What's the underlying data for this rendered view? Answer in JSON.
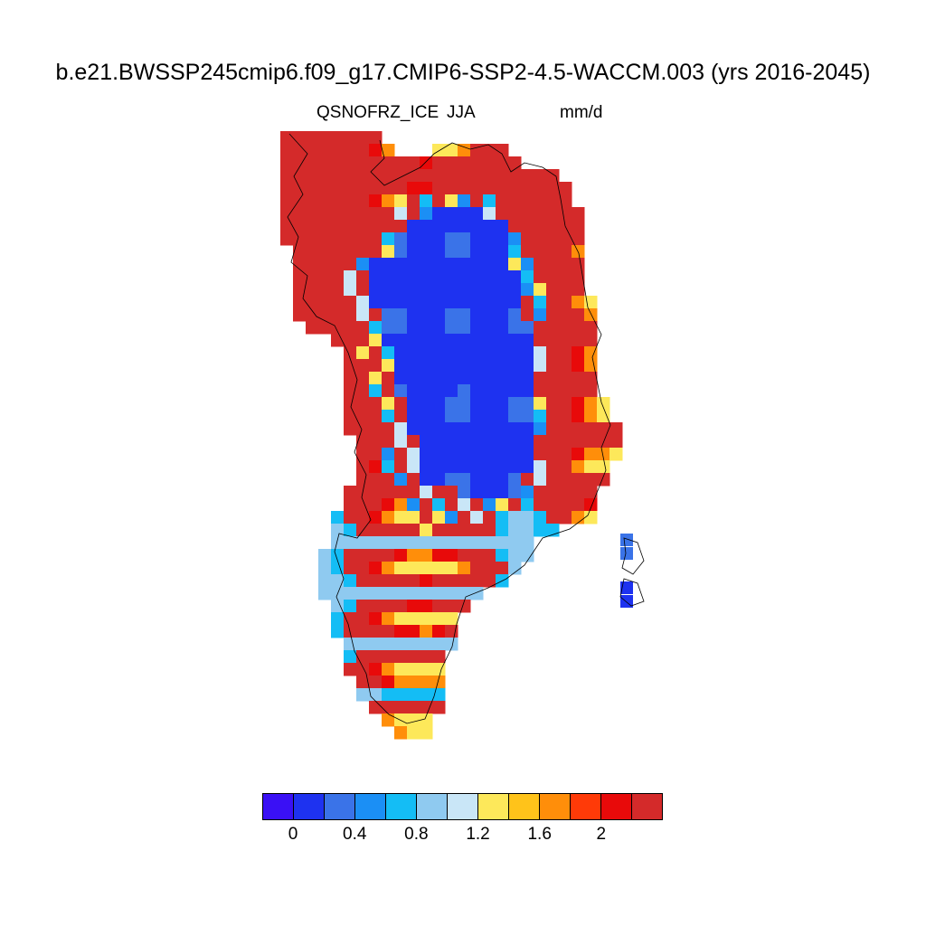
{
  "title": "b.e21.BWSSP245cmip6.f09_g17.CMIP6-SSP2-4.5-WACCM.003 (yrs 2016-2045)",
  "variable": "QSNOFRZ_ICE",
  "season": "JJA",
  "units": "mm/d",
  "colorbar": {
    "colors": [
      "#3a10f5",
      "#1e32f0",
      "#3a73e8",
      "#1b8ff5",
      "#14bdf5",
      "#8fcaf0",
      "#c9e6f7",
      "#fde85a",
      "#ffc31a",
      "#ff8e0a",
      "#ff3a08",
      "#e80a0a",
      "#d42a2a"
    ],
    "tick_labels": [
      "0",
      "0.4",
      "0.8",
      "1.2",
      "1.6",
      "2"
    ]
  },
  "map_data": {
    "region": "Greenland",
    "pattern": "high values (>2 mm/d) along coastal margins; low values (<0.2 mm/d) over central ice sheet interior"
  }
}
